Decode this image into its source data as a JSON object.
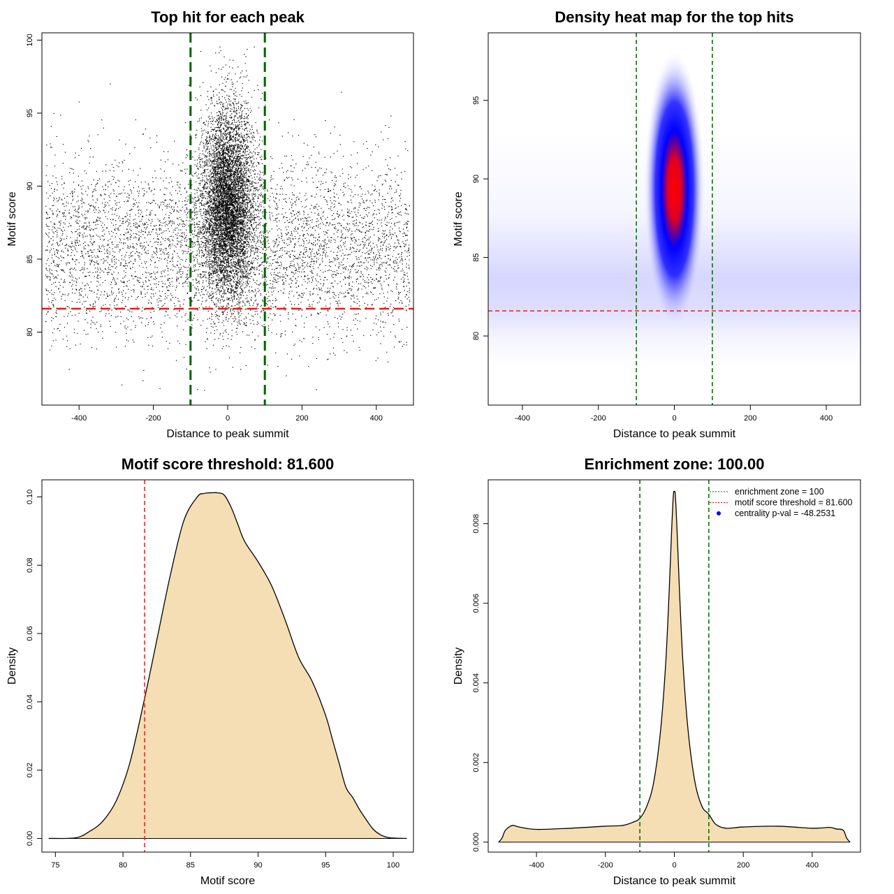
{
  "chart_data": [
    {
      "type": "scatter",
      "title": "Top hit for each peak",
      "xlabel": "Distance to peak summit",
      "ylabel": "Motif score",
      "xlim": [
        -500,
        500
      ],
      "ylim": [
        75,
        100.5
      ],
      "xticks": [
        -400,
        -200,
        0,
        200,
        400
      ],
      "yticks": [
        80,
        85,
        90,
        95,
        100
      ],
      "vlines": [
        -100,
        100
      ],
      "hline": 81.6,
      "distribution": {
        "background": {
          "x_range": [
            -490,
            490
          ],
          "score_mean": 85.8,
          "score_sd": 3.0
        },
        "central": {
          "x_mean": 0,
          "x_sd": 35,
          "score_mean": 88.8,
          "score_sd": 3.3
        }
      }
    },
    {
      "type": "heatmap",
      "title": "Density heat map for the top hits",
      "xlabel": "Distance to peak summit",
      "ylabel": "Motif score",
      "xlim": [
        -490,
        490
      ],
      "ylim": [
        75.6,
        99.3
      ],
      "xticks": [
        -400,
        -200,
        0,
        200,
        400
      ],
      "yticks": [
        80,
        85,
        90,
        95
      ],
      "vlines": [
        -100,
        100
      ],
      "hline": 81.6,
      "peak": {
        "x": 0,
        "y": 89.0
      },
      "colors": [
        "#ffffff",
        "#0000ff",
        "#ff0000"
      ]
    },
    {
      "type": "area",
      "title": "Motif score threshold: 81.600",
      "xlabel": "Motif score",
      "ylabel": "Density",
      "xlim": [
        74,
        101.5
      ],
      "ylim": [
        -0.004,
        0.105
      ],
      "xticks": [
        75,
        80,
        85,
        90,
        95,
        100
      ],
      "yticks": [
        0.0,
        0.02,
        0.04,
        0.06,
        0.08,
        0.1
      ],
      "ytick_labels": [
        "0.00",
        "0.02",
        "0.04",
        "0.06",
        "0.08",
        "0.10"
      ],
      "vline": 81.6,
      "x": [
        74.5,
        76.5,
        77.5,
        78.5,
        79.5,
        80.5,
        81.6,
        82.5,
        83.5,
        84.5,
        85.5,
        86.0,
        86.5,
        87.0,
        87.5,
        88.0,
        88.5,
        89.0,
        90.0,
        91.0,
        92.0,
        93.0,
        94.0,
        95.0,
        95.5,
        96.0,
        96.5,
        97.0,
        97.5,
        98.0,
        98.5,
        99.0,
        99.5,
        100.0,
        101.0
      ],
      "y": [
        0.0,
        0.0002,
        0.002,
        0.005,
        0.011,
        0.022,
        0.041,
        0.058,
        0.077,
        0.093,
        0.1,
        0.101,
        0.1012,
        0.1012,
        0.1005,
        0.097,
        0.092,
        0.087,
        0.081,
        0.074,
        0.064,
        0.053,
        0.046,
        0.036,
        0.029,
        0.022,
        0.015,
        0.012,
        0.0085,
        0.0055,
        0.0028,
        0.0012,
        0.0004,
        0.0001,
        0.0
      ]
    },
    {
      "type": "area",
      "title": "Enrichment zone: 100.00",
      "xlabel": "Distance to peak summit",
      "ylabel": "Density",
      "xlim": [
        -540,
        540
      ],
      "ylim": [
        -0.00025,
        0.0091
      ],
      "xticks": [
        -400,
        -200,
        0,
        200,
        400
      ],
      "yticks": [
        0.0,
        0.002,
        0.004,
        0.006,
        0.008
      ],
      "ytick_labels": [
        "0.000",
        "0.002",
        "0.004",
        "0.006",
        "0.008"
      ],
      "vlines": [
        -100,
        100
      ],
      "x": [
        -510,
        -500,
        -490,
        -470,
        -450,
        -400,
        -300,
        -200,
        -150,
        -120,
        -100,
        -80,
        -60,
        -40,
        -25,
        -15,
        -8,
        -3,
        0,
        3,
        8,
        15,
        25,
        40,
        60,
        80,
        100,
        120,
        150,
        200,
        300,
        400,
        450,
        470,
        490,
        500,
        510
      ],
      "y": [
        0.0,
        0.0001,
        0.0003,
        0.00042,
        0.00038,
        0.00032,
        0.00035,
        0.0004,
        0.00042,
        0.0005,
        0.0006,
        0.0009,
        0.0015,
        0.0028,
        0.0045,
        0.0063,
        0.0078,
        0.0087,
        0.0088,
        0.0087,
        0.0078,
        0.0063,
        0.0045,
        0.0028,
        0.0015,
        0.0009,
        0.0007,
        0.00045,
        0.00035,
        0.00038,
        0.0004,
        0.00035,
        0.00037,
        0.00033,
        0.0003,
        0.0001,
        0.0
      ],
      "legend": {
        "position": "top-right",
        "entries": [
          {
            "label": "enrichment zone = 100",
            "color": "#006400",
            "style": "dotted"
          },
          {
            "label": "motif score threshold = 81.600",
            "color": "#ff0000",
            "style": "dotted"
          },
          {
            "label": "centrality p-val = -48.2531",
            "color": "#0000ff",
            "style": "point"
          }
        ]
      }
    }
  ]
}
